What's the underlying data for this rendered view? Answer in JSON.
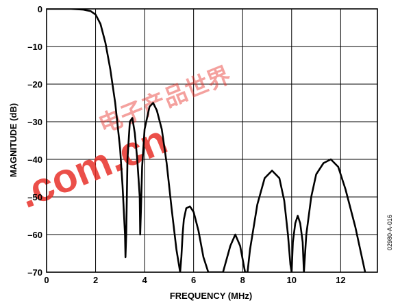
{
  "chart_data": {
    "type": "line",
    "title": "",
    "xlabel": "FREQUENCY (MHz)",
    "ylabel": "MAGNITUDE (dB)",
    "xlim": [
      0,
      13.5
    ],
    "ylim": [
      -70,
      0
    ],
    "xticks": [
      0,
      2,
      4,
      6,
      8,
      10,
      12
    ],
    "yticks": [
      0,
      -10,
      -20,
      -30,
      -40,
      -50,
      -60,
      -70
    ],
    "xtick_labels": [
      "0",
      "2",
      "4",
      "6",
      "8",
      "10",
      "12"
    ],
    "ytick_labels": [
      "0",
      "–10",
      "–20",
      "–30",
      "–40",
      "–50",
      "–60",
      "–70"
    ],
    "grid": true,
    "line_color": "#000000",
    "series": [
      {
        "x": [
          0,
          0.5,
          1.0,
          1.5,
          1.8,
          2.0,
          2.2,
          2.4,
          2.6,
          2.8,
          3.0,
          3.1,
          3.2,
          3.22,
          3.25,
          3.3,
          3.4,
          3.5,
          3.6,
          3.7,
          3.8,
          3.82,
          3.85,
          3.9,
          4.0,
          4.2,
          4.35,
          4.5,
          4.7,
          4.9,
          5.1,
          5.3,
          5.45,
          5.5,
          5.55,
          5.6,
          5.7,
          5.85,
          6.0,
          6.2,
          6.4,
          6.6,
          7.2,
          7.5,
          7.7,
          7.9,
          8.1,
          8.2,
          8.3,
          8.6,
          8.9,
          9.2,
          9.5,
          9.7,
          9.85,
          9.95,
          10.0,
          10.05,
          10.15,
          10.25,
          10.35,
          10.45,
          10.5,
          10.6,
          10.8,
          11.0,
          11.3,
          11.6,
          11.9,
          12.2,
          12.6,
          13.0
        ],
        "y": [
          0,
          0,
          0,
          -0.2,
          -0.6,
          -1.5,
          -4,
          -9,
          -16,
          -25,
          -37,
          -47,
          -60,
          -66,
          -60,
          -40,
          -30,
          -29,
          -33,
          -40,
          -50,
          -60,
          -54,
          -42,
          -32,
          -26,
          -25,
          -27,
          -32,
          -41,
          -53,
          -64,
          -70,
          -66,
          -60,
          -56,
          -53,
          -52.5,
          -54,
          -59,
          -66,
          -70,
          -70,
          -63,
          -60,
          -63,
          -70,
          -70,
          -64,
          -52,
          -45,
          -43,
          -45,
          -51,
          -60,
          -68,
          -70,
          -62,
          -57,
          -55,
          -57,
          -62,
          -70,
          -60,
          -50,
          -44,
          -41,
          -40,
          -42,
          -48,
          -58,
          -70
        ]
      }
    ],
    "figure_code": "02980-A-016"
  },
  "watermark": {
    "text": ".com.cn",
    "cjk": "电子产品世界"
  }
}
